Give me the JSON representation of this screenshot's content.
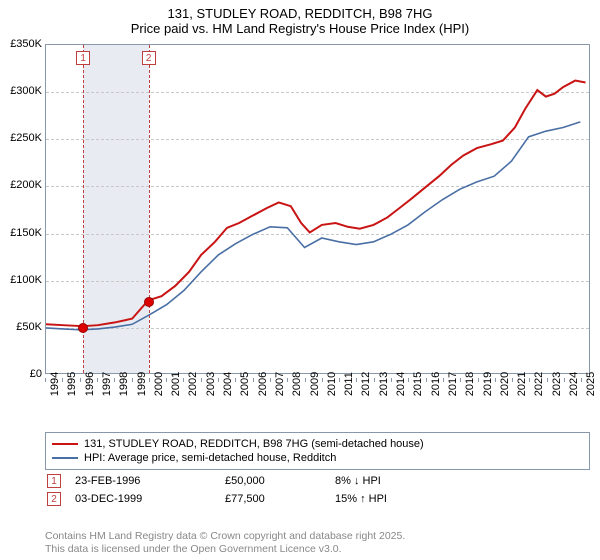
{
  "title_line1": "131, STUDLEY ROAD, REDDITCH, B98 7HG",
  "title_line2": "Price paid vs. HM Land Registry's House Price Index (HPI)",
  "colors": {
    "series_red": "#c91414",
    "series_blue": "#4a6fa5",
    "axis_border": "#8898a8",
    "grid": "#c8c8c8",
    "highlight_band": "#e8ecf2",
    "ref_line": "#c04040",
    "dot": "#d00000",
    "text": "#000000",
    "attribution": "#888888",
    "background": "#ffffff"
  },
  "chart": {
    "type": "line",
    "x_range": [
      1994,
      2025.5
    ],
    "y_range": [
      0,
      350000
    ],
    "y_ticks": [
      0,
      50000,
      100000,
      150000,
      200000,
      250000,
      300000,
      350000
    ],
    "y_tick_labels": [
      "£0",
      "£50K",
      "£100K",
      "£150K",
      "£200K",
      "£250K",
      "£300K",
      "£350K"
    ],
    "x_ticks": [
      1994,
      1995,
      1996,
      1997,
      1998,
      1999,
      2000,
      2001,
      2002,
      2003,
      2004,
      2005,
      2006,
      2007,
      2008,
      2009,
      2010,
      2011,
      2012,
      2013,
      2014,
      2015,
      2016,
      2017,
      2018,
      2019,
      2020,
      2021,
      2022,
      2023,
      2024,
      2025
    ],
    "highlight_band": {
      "x_start": 1996.15,
      "x_end": 1999.93
    },
    "ref_lines": [
      {
        "x": 1996.15,
        "label": "1"
      },
      {
        "x": 1999.93,
        "label": "2"
      }
    ],
    "sale_points": [
      {
        "x": 1996.15,
        "y": 50000
      },
      {
        "x": 1999.93,
        "y": 77500
      }
    ],
    "line_width_red": 2,
    "line_width_blue": 1.6,
    "series_red": [
      [
        1994,
        52000
      ],
      [
        1995,
        51000
      ],
      [
        1996.15,
        50000
      ],
      [
        1997,
        51000
      ],
      [
        1998,
        54000
      ],
      [
        1999,
        58000
      ],
      [
        1999.93,
        77500
      ],
      [
        2000.7,
        82000
      ],
      [
        2001.5,
        93000
      ],
      [
        2002.3,
        108000
      ],
      [
        2003,
        126000
      ],
      [
        2003.8,
        140000
      ],
      [
        2004.5,
        155000
      ],
      [
        2005.2,
        160000
      ],
      [
        2006,
        168000
      ],
      [
        2006.8,
        176000
      ],
      [
        2007.5,
        182000
      ],
      [
        2008.2,
        178000
      ],
      [
        2008.8,
        160000
      ],
      [
        2009.3,
        150000
      ],
      [
        2010,
        158000
      ],
      [
        2010.8,
        160000
      ],
      [
        2011.5,
        156000
      ],
      [
        2012.2,
        154000
      ],
      [
        2013,
        158000
      ],
      [
        2013.8,
        166000
      ],
      [
        2014.5,
        176000
      ],
      [
        2015.2,
        186000
      ],
      [
        2016,
        198000
      ],
      [
        2016.8,
        210000
      ],
      [
        2017.5,
        222000
      ],
      [
        2018.2,
        232000
      ],
      [
        2019,
        240000
      ],
      [
        2019.8,
        244000
      ],
      [
        2020.5,
        248000
      ],
      [
        2021.2,
        262000
      ],
      [
        2021.8,
        282000
      ],
      [
        2022.5,
        302000
      ],
      [
        2023,
        295000
      ],
      [
        2023.5,
        298000
      ],
      [
        2024,
        305000
      ],
      [
        2024.7,
        312000
      ],
      [
        2025.3,
        310000
      ]
    ],
    "series_blue": [
      [
        1994,
        48000
      ],
      [
        1995,
        47000
      ],
      [
        1996,
        46000
      ],
      [
        1997,
        47000
      ],
      [
        1998,
        49000
      ],
      [
        1999,
        52000
      ],
      [
        2000,
        62000
      ],
      [
        2001,
        73000
      ],
      [
        2002,
        88000
      ],
      [
        2003,
        108000
      ],
      [
        2004,
        126000
      ],
      [
        2005,
        138000
      ],
      [
        2006,
        148000
      ],
      [
        2007,
        156000
      ],
      [
        2008,
        155000
      ],
      [
        2009,
        134000
      ],
      [
        2010,
        144000
      ],
      [
        2011,
        140000
      ],
      [
        2012,
        137000
      ],
      [
        2013,
        140000
      ],
      [
        2014,
        148000
      ],
      [
        2015,
        158000
      ],
      [
        2016,
        172000
      ],
      [
        2017,
        185000
      ],
      [
        2018,
        196000
      ],
      [
        2019,
        204000
      ],
      [
        2020,
        210000
      ],
      [
        2021,
        226000
      ],
      [
        2022,
        252000
      ],
      [
        2023,
        258000
      ],
      [
        2024,
        262000
      ],
      [
        2025,
        268000
      ]
    ]
  },
  "legend": {
    "item1": "131, STUDLEY ROAD, REDDITCH, B98 7HG (semi-detached house)",
    "item2": "HPI: Average price, semi-detached house, Redditch"
  },
  "table": {
    "rows": [
      {
        "badge": "1",
        "date": "23-FEB-1996",
        "price": "£50,000",
        "delta": "8% ↓ HPI"
      },
      {
        "badge": "2",
        "date": "03-DEC-1999",
        "price": "£77,500",
        "delta": "15% ↑ HPI"
      }
    ]
  },
  "attribution": {
    "line1": "Contains HM Land Registry data © Crown copyright and database right 2025.",
    "line2": "This data is licensed under the Open Government Licence v3.0."
  }
}
